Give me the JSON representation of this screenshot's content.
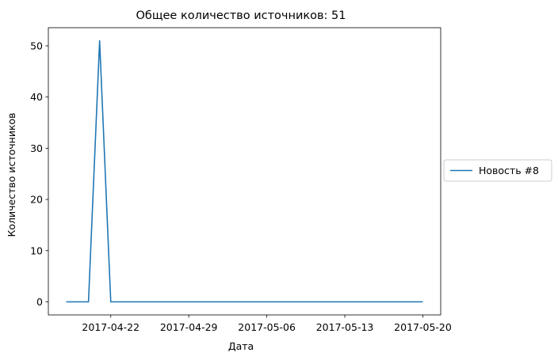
{
  "chart_data": {
    "type": "line",
    "title": "Общее количество источников: 51",
    "xlabel": "Дата",
    "ylabel": "Количество источников",
    "x": [
      "2017-04-18",
      "2017-04-19",
      "2017-04-20",
      "2017-04-21",
      "2017-04-22",
      "2017-04-23",
      "2017-04-24",
      "2017-04-25",
      "2017-04-26",
      "2017-04-27",
      "2017-04-28",
      "2017-04-29",
      "2017-04-30",
      "2017-05-01",
      "2017-05-02",
      "2017-05-03",
      "2017-05-04",
      "2017-05-05",
      "2017-05-06",
      "2017-05-07",
      "2017-05-08",
      "2017-05-09",
      "2017-05-10",
      "2017-05-11",
      "2017-05-12",
      "2017-05-13",
      "2017-05-14",
      "2017-05-15",
      "2017-05-16",
      "2017-05-17",
      "2017-05-18",
      "2017-05-19",
      "2017-05-20"
    ],
    "series": [
      {
        "name": "Новость #8",
        "color": "#1f77b4",
        "values": [
          0,
          0,
          0,
          51,
          0,
          0,
          0,
          0,
          0,
          0,
          0,
          0,
          0,
          0,
          0,
          0,
          0,
          0,
          0,
          0,
          0,
          0,
          0,
          0,
          0,
          0,
          0,
          0,
          0,
          0,
          0,
          0,
          0
        ]
      }
    ],
    "xlim": [
      "2017-04-16T09:36",
      "2017-05-21T14:24"
    ],
    "ylim": [
      -2.55,
      53.55
    ],
    "xticks": [
      "2017-04-22",
      "2017-04-29",
      "2017-05-06",
      "2017-05-13",
      "2017-05-20"
    ],
    "yticks": [
      0,
      10,
      20,
      30,
      40,
      50
    ],
    "grid": false,
    "legend_position": "right"
  }
}
